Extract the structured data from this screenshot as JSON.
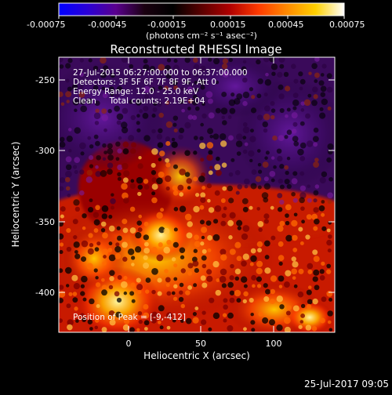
{
  "colorbar": {
    "tick_labels": [
      "-0.00075",
      "-0.00045",
      "-0.00015",
      "0.00015",
      "0.00045",
      "0.00075"
    ],
    "unit_label": "(photons cm⁻² s⁻¹ asec⁻²)",
    "colors": [
      "#0000ff",
      "#2a00d6",
      "#5a008e",
      "#1a0010",
      "#000000",
      "#5a0000",
      "#b00000",
      "#ff3a00",
      "#ff8a00",
      "#ffd000",
      "#ffffff"
    ]
  },
  "title": "Reconstructed RHESSI Image",
  "info": {
    "time_range": "27-Jul-2015 06:27:00.000 to 06:37:00.000",
    "detectors": "Detectors: 3F 5F 6F 7F 8F 9F, Att 0",
    "energy_range": "Energy Range: 12.0 - 25.0 keV",
    "method_counts": "Clean     Total counts: 2.19E+04",
    "peak_position": "Position of Peak = [-9,-412]"
  },
  "axes": {
    "x_label": "Heliocentric X (arcsec)",
    "y_label": "Heliocentric Y (arcsec)",
    "x_ticks": [
      "0",
      "50",
      "100"
    ],
    "y_ticks": [
      "-250",
      "-300",
      "-350",
      "-400"
    ],
    "x_range": [
      -48,
      140
    ],
    "y_range": [
      -428,
      -240
    ]
  },
  "footer_timestamp": "25-Jul-2017 09:05"
}
